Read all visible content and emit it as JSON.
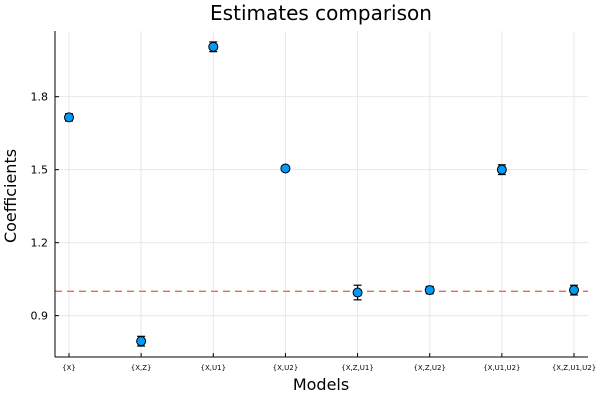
{
  "chart_data": {
    "type": "scatter",
    "title": "Estimates comparison",
    "xlabel": "Models",
    "ylabel": "Coefficients",
    "categories": [
      "{X}",
      "{X,Z}",
      "{X,U1}",
      "{X,U2}",
      "{X,Z,U1}",
      "{X,Z,U2}",
      "{X,U1,U2}",
      "{X,Z,U1,U2}"
    ],
    "series": [
      {
        "values": [
          1.715,
          0.795,
          2.005,
          1.505,
          0.995,
          1.005,
          1.5,
          1.005
        ],
        "err_low": [
          1.7,
          0.775,
          1.985,
          1.495,
          0.965,
          0.99,
          1.48,
          0.985
        ],
        "err_high": [
          1.73,
          0.815,
          2.025,
          1.515,
          1.025,
          1.02,
          1.52,
          1.025
        ],
        "color": "#009AFA"
      }
    ],
    "reference_line": {
      "y": 1.0,
      "style": "dashed",
      "color": "#E26F46"
    },
    "yticks": [
      0.9,
      1.2,
      1.5,
      1.8
    ],
    "ytick_labels": [
      "0.9",
      "1.2",
      "1.5",
      "1.8"
    ],
    "ylim": [
      0.73,
      2.07
    ],
    "grid": true,
    "legend": "none"
  }
}
